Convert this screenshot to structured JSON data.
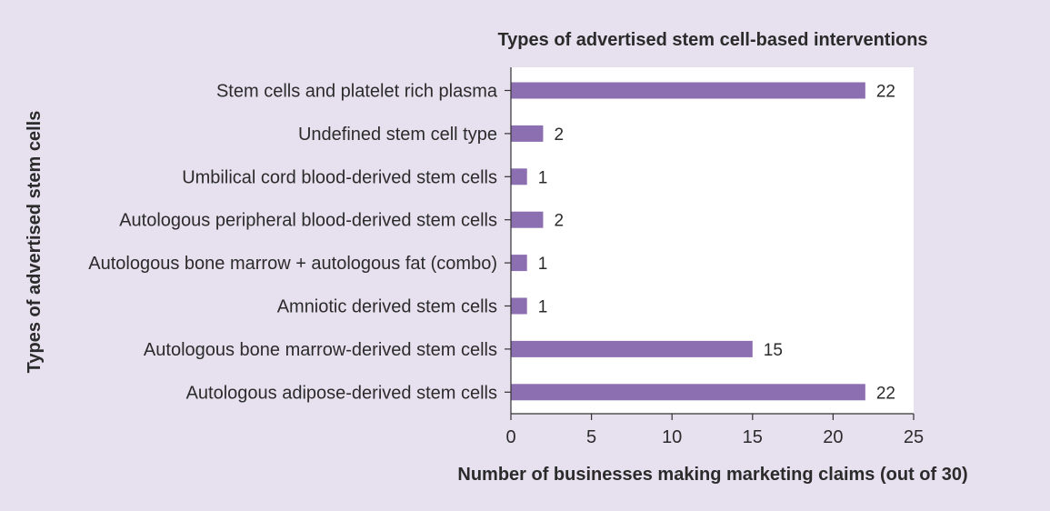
{
  "chart_data": {
    "type": "bar",
    "orientation": "horizontal",
    "title": "Types of advertised stem cell-based interventions",
    "xlabel": "Number of businesses making marketing claims (out of 30)",
    "ylabel": "Types of advertised stem cells",
    "categories": [
      "Stem cells and platelet rich plasma",
      "Undefined stem cell type",
      "Umbilical cord blood-derived stem cells",
      "Autologous peripheral blood-derived stem cells",
      "Autologous bone marrow + autologous fat (combo)",
      "Amniotic derived stem cells",
      "Autologous bone marrow-derived stem cells",
      "Autologous adipose-derived stem cells"
    ],
    "values": [
      22,
      2,
      1,
      2,
      1,
      1,
      15,
      22
    ],
    "data_labels": [
      "22",
      "2",
      "1",
      "2",
      "1",
      "1",
      "15",
      "22"
    ],
    "xlim": [
      0,
      25
    ],
    "xticks": [
      0,
      5,
      10,
      15,
      20,
      25
    ],
    "xtick_labels": [
      "0",
      "5",
      "10",
      "15",
      "20",
      "25"
    ],
    "grid": false,
    "legend": "none",
    "colors": {
      "bar": "#8c6fb0",
      "page_background": "#e6e0ef",
      "plot_background": "#ffffff",
      "axis": "#333333",
      "text": "#2b2b2b"
    }
  }
}
